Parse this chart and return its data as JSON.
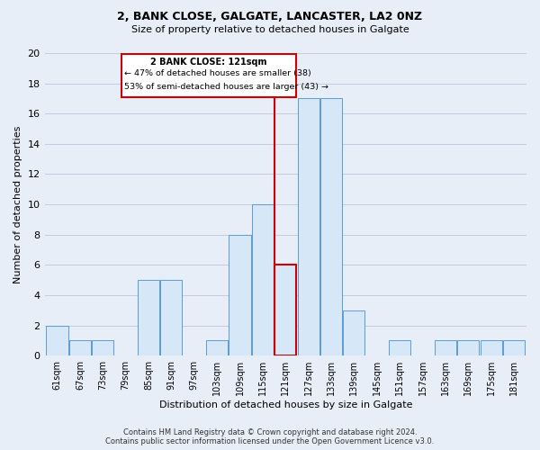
{
  "title1": "2, BANK CLOSE, GALGATE, LANCASTER, LA2 0NZ",
  "title2": "Size of property relative to detached houses in Galgate",
  "xlabel": "Distribution of detached houses by size in Galgate",
  "ylabel": "Number of detached properties",
  "bin_labels": [
    "61sqm",
    "67sqm",
    "73sqm",
    "79sqm",
    "85sqm",
    "91sqm",
    "97sqm",
    "103sqm",
    "109sqm",
    "115sqm",
    "121sqm",
    "127sqm",
    "133sqm",
    "139sqm",
    "145sqm",
    "151sqm",
    "157sqm",
    "163sqm",
    "169sqm",
    "175sqm",
    "181sqm"
  ],
  "bar_heights": [
    2,
    1,
    1,
    0,
    5,
    5,
    0,
    1,
    8,
    10,
    6,
    17,
    17,
    3,
    0,
    1,
    0,
    1,
    1,
    1,
    1
  ],
  "bar_color": "#d6e8f7",
  "bar_edge_color": "#5b9bd5",
  "highlight_bin_index": 10,
  "highlight_color": "#cc0000",
  "annotation_title": "2 BANK CLOSE: 121sqm",
  "annotation_line1": "← 47% of detached houses are smaller (38)",
  "annotation_line2": "53% of semi-detached houses are larger (43) →",
  "ylim": [
    0,
    20
  ],
  "yticks": [
    0,
    2,
    4,
    6,
    8,
    10,
    12,
    14,
    16,
    18,
    20
  ],
  "footer1": "Contains HM Land Registry data © Crown copyright and database right 2024.",
  "footer2": "Contains public sector information licensed under the Open Government Licence v3.0.",
  "bg_color": "#e8eef8",
  "grid_color": "#c0cce0"
}
